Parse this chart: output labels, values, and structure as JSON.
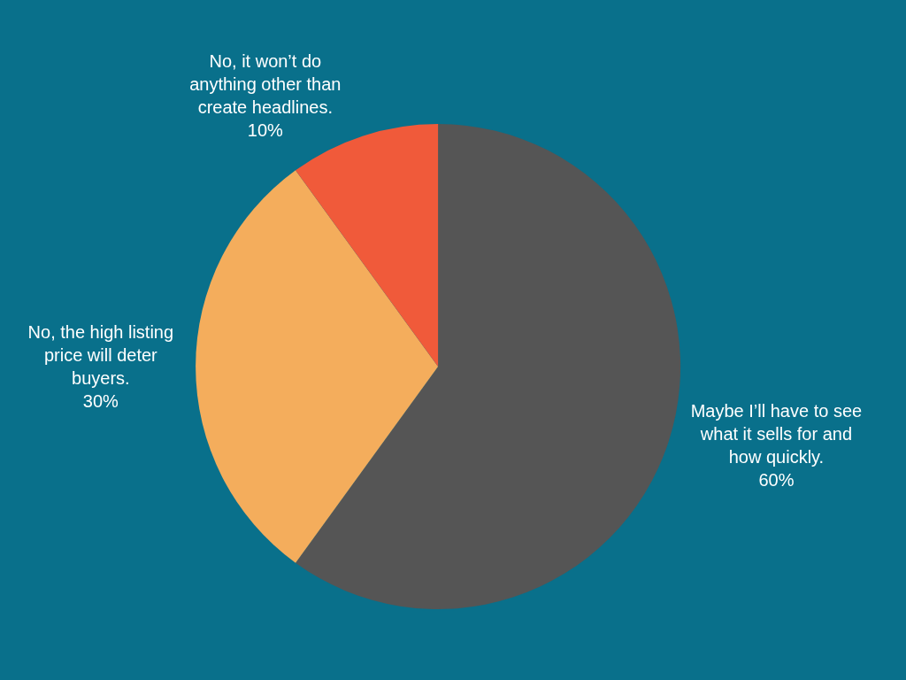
{
  "chart_data": {
    "type": "pie",
    "categories": [
      "Maybe I’ll have to see what it sells for and how quickly.",
      "No, the high listing price will deter buyers.",
      "No, it won’t do anything other than create headlines."
    ],
    "values": [
      60,
      30,
      10
    ],
    "value_labels": [
      "60%",
      "30%",
      "10%"
    ],
    "colors": [
      "#555555",
      "#f4ad5c",
      "#f05a3a"
    ],
    "legend": false
  }
}
